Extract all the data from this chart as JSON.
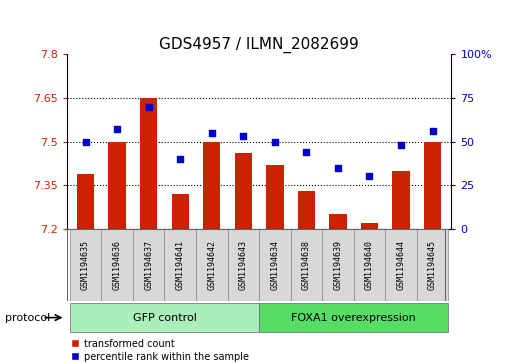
{
  "title": "GDS4957 / ILMN_2082699",
  "samples": [
    "GSM1194635",
    "GSM1194636",
    "GSM1194637",
    "GSM1194641",
    "GSM1194642",
    "GSM1194643",
    "GSM1194634",
    "GSM1194638",
    "GSM1194639",
    "GSM1194640",
    "GSM1194644",
    "GSM1194645"
  ],
  "transformed_count": [
    7.39,
    7.5,
    7.65,
    7.32,
    7.5,
    7.46,
    7.42,
    7.33,
    7.25,
    7.22,
    7.4,
    7.5
  ],
  "percentile_rank": [
    50,
    57,
    70,
    40,
    55,
    53,
    50,
    44,
    35,
    30,
    48,
    56
  ],
  "ylim_left": [
    7.2,
    7.8
  ],
  "ylim_right": [
    0,
    100
  ],
  "yticks_left": [
    7.2,
    7.35,
    7.5,
    7.65,
    7.8
  ],
  "yticks_right": [
    0,
    25,
    50,
    75,
    100
  ],
  "ytick_labels_left": [
    "7.2",
    "7.35",
    "7.5",
    "7.65",
    "7.8"
  ],
  "ytick_labels_right": [
    "0",
    "25",
    "50",
    "75",
    "100%"
  ],
  "hlines": [
    7.35,
    7.5,
    7.65
  ],
  "group1_label": "GFP control",
  "group2_label": "FOXA1 overexpression",
  "group1_count": 6,
  "group2_count": 6,
  "protocol_label": "protocol",
  "legend1_label": "transformed count",
  "legend2_label": "percentile rank within the sample",
  "bar_color": "#cc2200",
  "dot_color": "#0000cc",
  "bar_bottom": 7.2,
  "group1_color": "#aaeebb",
  "group2_color": "#55dd66",
  "sample_box_color": "#d8d8d8",
  "title_fontsize": 11,
  "tick_fontsize": 8,
  "label_fontsize": 8,
  "sample_fontsize": 6
}
